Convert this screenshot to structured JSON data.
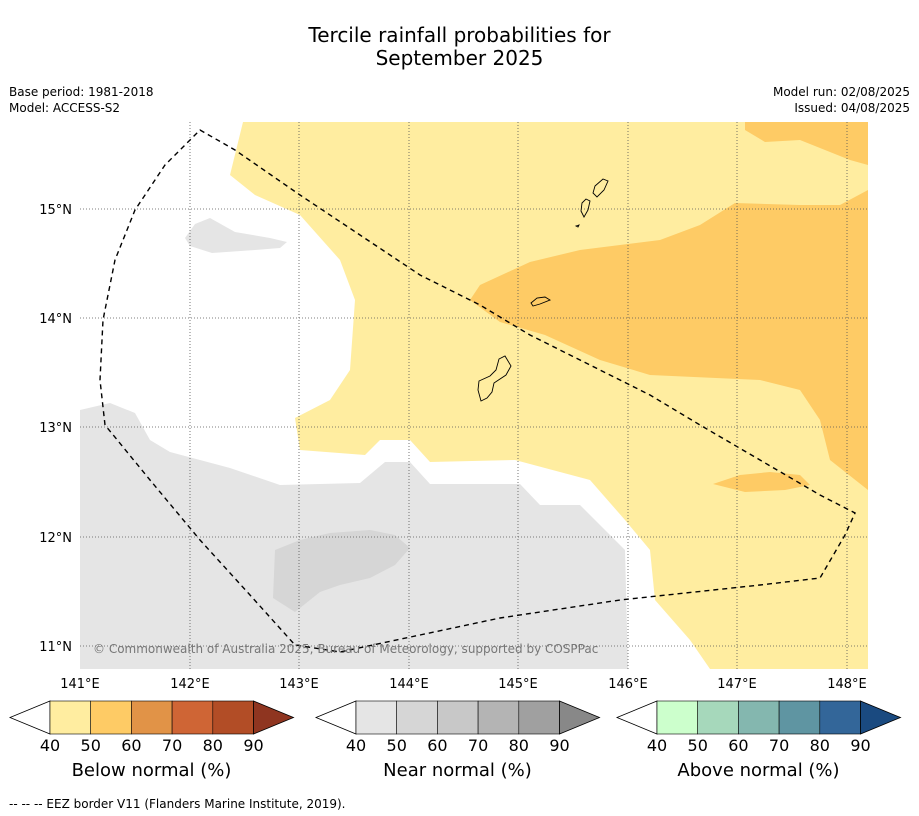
{
  "title_line1": "Tercile rainfall probabilities for",
  "title_line2": "September 2025",
  "base_period": "Base period: 1981-2018",
  "model": "Model: ACCESS-S2",
  "model_run": "Model run: 02/08/2025",
  "issued": "Issued: 04/08/2025",
  "map": {
    "lon_labels": [
      "141°E",
      "142°E",
      "143°E",
      "144°E",
      "145°E",
      "146°E",
      "147°E",
      "148°E"
    ],
    "lat_labels": [
      "15°N",
      "14°N",
      "13°N",
      "12°N",
      "11°N"
    ],
    "copyright": "© Commonwealth of Australia 2025, Bureau of Meteorology, supported by COSPPac"
  },
  "colorbars": [
    {
      "label": "Below normal (%)",
      "ticks": [
        "40",
        "50",
        "60",
        "70",
        "80",
        "90"
      ],
      "colors": [
        "#ffffff",
        "#ffeda0",
        "#fecb65",
        "#e19347",
        "#cf6535",
        "#b24d26",
        "#8f3520"
      ]
    },
    {
      "label": "Near normal (%)",
      "ticks": [
        "40",
        "50",
        "60",
        "70",
        "80",
        "90"
      ],
      "colors": [
        "#ffffff",
        "#e5e5e5",
        "#d6d6d6",
        "#c8c8c8",
        "#b4b4b4",
        "#a0a0a0",
        "#888888"
      ]
    },
    {
      "label": "Above normal (%)",
      "ticks": [
        "40",
        "50",
        "60",
        "70",
        "80",
        "90"
      ],
      "colors": [
        "#ffffff",
        "#ccffcc",
        "#a6d8bb",
        "#84b7af",
        "#5f95a2",
        "#336699",
        "#1a4a80"
      ]
    }
  ],
  "footer": "--  --  -- EEZ border V11 (Flanders Marine Institute, 2019)."
}
